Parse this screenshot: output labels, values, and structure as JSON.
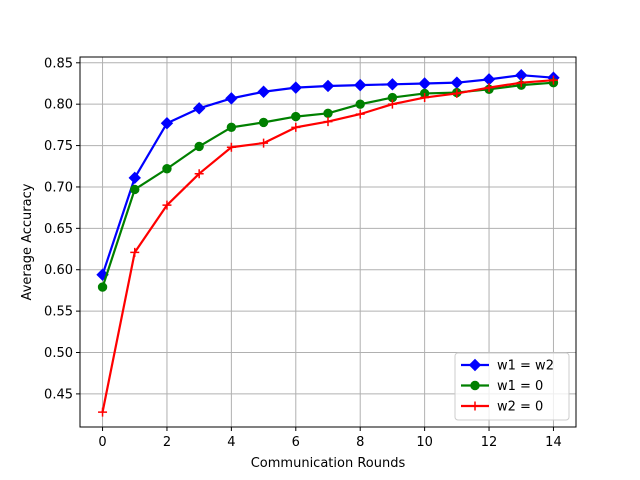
{
  "chart_data": {
    "type": "line",
    "title": "",
    "xlabel": "Communication Rounds",
    "ylabel": "Average Accuracy",
    "xlim": [
      -0.7,
      14.7
    ],
    "ylim": [
      0.41,
      0.857
    ],
    "x": [
      0,
      1,
      2,
      3,
      4,
      5,
      6,
      7,
      8,
      9,
      10,
      11,
      12,
      13,
      14
    ],
    "x_ticks": [
      0,
      2,
      4,
      6,
      8,
      10,
      12,
      14
    ],
    "y_ticks": [
      0.45,
      0.5,
      0.55,
      0.6,
      0.65,
      0.7,
      0.75,
      0.8,
      0.85
    ],
    "grid": true,
    "legend_position": "lower-right",
    "series": [
      {
        "name": " w1 = w2",
        "color": "#0000ff",
        "marker": "diamond",
        "values": [
          0.594,
          0.711,
          0.777,
          0.795,
          0.807,
          0.815,
          0.82,
          0.822,
          0.823,
          0.824,
          0.825,
          0.826,
          0.83,
          0.835,
          0.832
        ]
      },
      {
        "name": "w1 = 0",
        "color": "#008000",
        "marker": "circle",
        "values": [
          0.579,
          0.697,
          0.722,
          0.749,
          0.772,
          0.778,
          0.785,
          0.789,
          0.8,
          0.808,
          0.813,
          0.814,
          0.818,
          0.823,
          0.826
        ]
      },
      {
        "name": "w2 = 0",
        "color": "#ff0000",
        "marker": "plus",
        "values": [
          0.428,
          0.621,
          0.678,
          0.716,
          0.748,
          0.753,
          0.772,
          0.779,
          0.788,
          0.8,
          0.808,
          0.813,
          0.82,
          0.826,
          0.829
        ]
      }
    ]
  }
}
